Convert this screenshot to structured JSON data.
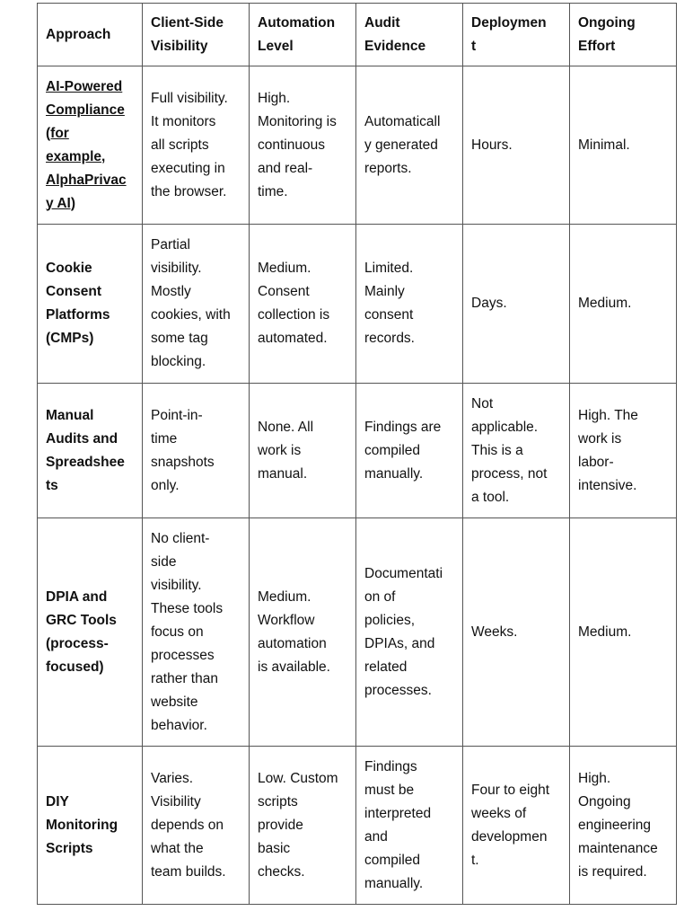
{
  "table": {
    "headers": [
      "Approach",
      "Client-Side\nVisibility",
      "Automation\nLevel",
      "Audit\nEvidence",
      "Deploymen\nt",
      "Ongoing\nEffort"
    ],
    "rows": [
      [
        "AI-Powered\nCompliance\n(for\nexample,\nAlphaPrivac\ny AI)",
        "Full visibility.\nIt monitors\nall scripts\nexecuting in\nthe browser.",
        "High.\nMonitoring is\ncontinuous\nand real-\ntime.",
        "Automaticall\ny generated\nreports.",
        "Hours.",
        "Minimal."
      ],
      [
        "Cookie\nConsent\nPlatforms\n(CMPs)",
        "Partial\nvisibility.\nMostly\ncookies, with\nsome tag\nblocking.",
        "Medium.\nConsent\ncollection is\nautomated.",
        "Limited.\nMainly\nconsent\nrecords.",
        "Days.",
        "Medium."
      ],
      [
        "Manual\nAudits and\nSpreadshee\nts",
        "Point-in-\ntime\nsnapshots\nonly.",
        "None. All\nwork is\nmanual.",
        "Findings are\ncompiled\nmanually.",
        "Not\napplicable.\nThis is a\nprocess, not\na tool.",
        "High. The\nwork is\nlabor-\nintensive."
      ],
      [
        "DPIA and\nGRC Tools\n(process-\nfocused)",
        "No client-\nside\nvisibility.\nThese tools\nfocus on\nprocesses\nrather than\nwebsite\nbehavior.",
        "Medium.\nWorkflow\nautomation\nis available.",
        "Documentati\non of\npolicies,\nDPIAs, and\nrelated\nprocesses.",
        "Weeks.",
        "Medium."
      ],
      [
        "DIY\nMonitoring\nScripts",
        "Varies.\nVisibility\ndepends on\nwhat the\nteam builds.",
        "Low. Custom\nscripts\nprovide\nbasic\nchecks.",
        "Findings\nmust be\ninterpreted\nand\ncompiled\nmanually.",
        "Four to eight\nweeks of\ndevelopmen\nt.",
        "High.\nOngoing\nengineering\nmaintenance\nis required."
      ]
    ]
  }
}
